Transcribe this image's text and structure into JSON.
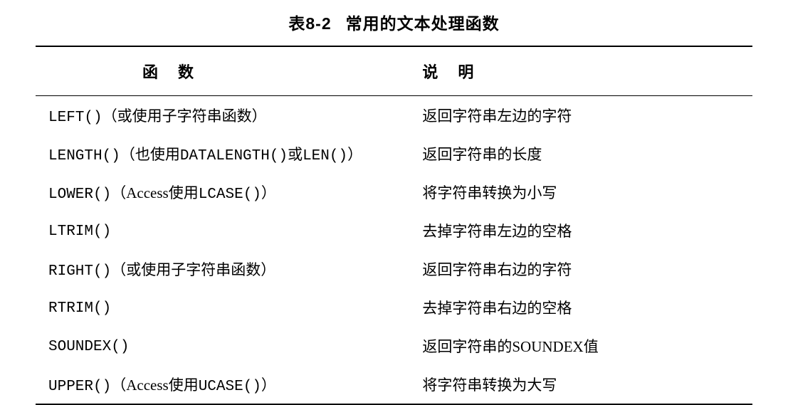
{
  "caption_prefix": "表8-2",
  "caption_title": "常用的文本处理函数",
  "headers": {
    "function": "函数",
    "description": "说明"
  },
  "rows": [
    {
      "func_code": "LEFT()",
      "func_note": "（或使用子字符串函数）",
      "desc": "返回字符串左边的字符"
    },
    {
      "func_code": "LENGTH()",
      "func_note_pre": "（也使用",
      "func_code2": "DATALENGTH()",
      "func_note_mid": "或",
      "func_code3": "LEN()",
      "func_note_post": "）",
      "desc": "返回字符串的长度"
    },
    {
      "func_code": "LOWER()",
      "func_note_pre": "（Access使用",
      "func_code2": "LCASE()",
      "func_note_post": "）",
      "desc": "将字符串转换为小写"
    },
    {
      "func_code": "LTRIM()",
      "func_note": "",
      "desc": "去掉字符串左边的空格"
    },
    {
      "func_code": "RIGHT()",
      "func_note": "（或使用子字符串函数）",
      "desc": "返回字符串右边的字符"
    },
    {
      "func_code": "RTRIM()",
      "func_note": "",
      "desc": "去掉字符串右边的空格"
    },
    {
      "func_code": "SOUNDEX()",
      "func_note": "",
      "desc": "返回字符串的SOUNDEX值"
    },
    {
      "func_code": "UPPER()",
      "func_note_pre": "（Access使用",
      "func_code2": "UCASE()",
      "func_note_post": "）",
      "desc": "将字符串转换为大写"
    }
  ],
  "style": {
    "background_color": "#ffffff",
    "text_color": "#000000",
    "border_color": "#000000",
    "caption_fontsize": 23,
    "header_fontsize": 22,
    "body_fontsize": 21,
    "top_border_width": 2.5,
    "header_border_width": 1.5,
    "bottom_border_width": 2.5
  }
}
